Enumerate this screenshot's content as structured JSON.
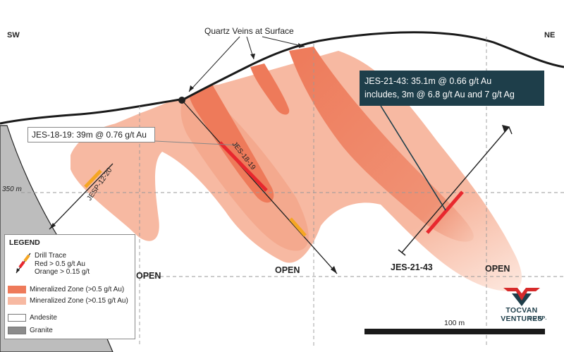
{
  "direction": {
    "left": "SW",
    "right": "NE"
  },
  "annotations": {
    "quartz_veins": "Quartz Veins at Surface",
    "elevation": "350 m",
    "open_labels": [
      "OPEN",
      "OPEN",
      "OPEN"
    ],
    "scale_bar": "100 m"
  },
  "drill_holes": {
    "jes_18_19": "JES-18-19",
    "jesp_12_20": "JESP-12-20",
    "jes_21_43": "JES-21-43"
  },
  "callouts": {
    "jes_21_43_line1": "JES-21-43: 35.1m @ 0.66 g/t Au",
    "jes_21_43_line2": "includes, 3m @ 6.8 g/t Au and 7 g/t Ag",
    "jes_18_19": "JES-18-19: 39m @ 0.76 g/t Au"
  },
  "legend": {
    "title": "LEGEND",
    "drill_trace": "Drill Trace",
    "red": "Red > 0.5 g/t Au",
    "orange": "Orange > 0.15 g/t",
    "mineralized_high": "Mineralized Zone (>0.5 g/t Au)",
    "mineralized_low": "Mineralized Zone (>0.15 g/t Au)",
    "andesite": "Andesite",
    "granite": "Granite"
  },
  "logo": {
    "name": "TOCVAN VENTURES",
    "sub": "CORP."
  },
  "colors": {
    "mineralized_high": "#ee7a5a",
    "mineralized_low": "#f7b9a2",
    "drill_red": "#e8282e",
    "drill_orange": "#f5a623",
    "granite": "#bdbdbd",
    "callout_dark": "#1e3e4a"
  }
}
